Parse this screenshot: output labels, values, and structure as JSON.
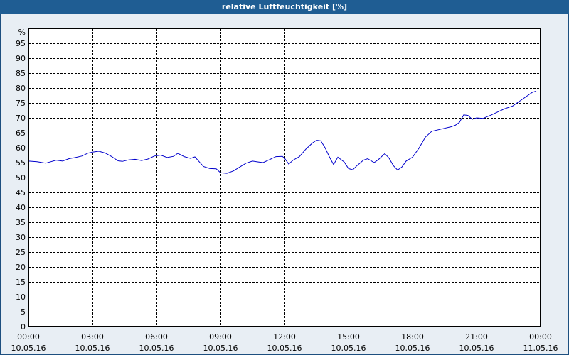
{
  "window": {
    "title": "relative Luftfeuchtigkeit [%]"
  },
  "colors": {
    "titlebar": "#1f5d93",
    "plot_bg": "#ffffff",
    "line": "#0000cc",
    "grid": "#000000",
    "page_bg": "#e8eef4"
  },
  "chart_data": {
    "type": "line",
    "title": "relative Luftfeuchtigkeit [%]",
    "ylabel": "%",
    "xlabel": "",
    "ylim": [
      0,
      100
    ],
    "yticks": [
      0,
      5,
      10,
      15,
      20,
      25,
      30,
      35,
      40,
      45,
      50,
      55,
      60,
      65,
      70,
      75,
      80,
      85,
      90,
      95
    ],
    "xlim": [
      0,
      24
    ],
    "xticks": [
      {
        "h": 0,
        "time": "00:00",
        "date": "10.05.16"
      },
      {
        "h": 3,
        "time": "03:00",
        "date": "10.05.16"
      },
      {
        "h": 6,
        "time": "06:00",
        "date": "10.05.16"
      },
      {
        "h": 9,
        "time": "09:00",
        "date": "10.05.16"
      },
      {
        "h": 12,
        "time": "12:00",
        "date": "10.05.16"
      },
      {
        "h": 15,
        "time": "15:00",
        "date": "10.05.16"
      },
      {
        "h": 18,
        "time": "18:00",
        "date": "10.05.16"
      },
      {
        "h": 21,
        "time": "21:00",
        "date": "10.05.16"
      },
      {
        "h": 24,
        "time": "00:00",
        "date": "11.05.16"
      }
    ],
    "grid": true,
    "series": [
      {
        "x": [
          0,
          0.4,
          0.8,
          1.0,
          1.3,
          1.6,
          1.9,
          2.2,
          2.5,
          2.8,
          3.0,
          3.3,
          3.6,
          3.9,
          4.2,
          4.4,
          4.7,
          5.0,
          5.3,
          5.6,
          5.9,
          6.2,
          6.5,
          6.8,
          7.0,
          7.3,
          7.6,
          7.8,
          8.0,
          8.2,
          8.5,
          8.8,
          9.0,
          9.3,
          9.6,
          9.9,
          10.2,
          10.5,
          10.8,
          11.0,
          11.3,
          11.6,
          11.9,
          12.0,
          12.2,
          12.4,
          12.7,
          13.0,
          13.3,
          13.5,
          13.7,
          13.9,
          14.1,
          14.3,
          14.5,
          14.8,
          15.0,
          15.2,
          15.4,
          15.7,
          15.9,
          16.2,
          16.4,
          16.7,
          16.9,
          17.1,
          17.3,
          17.5,
          17.7,
          18.0,
          18.3,
          18.6,
          18.9,
          19.2,
          19.5,
          19.8,
          20.0,
          20.2,
          20.4,
          20.6,
          20.8,
          21.0,
          21.3,
          21.7,
          22.0,
          22.3,
          22.7,
          23.0,
          23.3,
          23.6,
          23.8
        ],
        "y": [
          55.5,
          55.3,
          54.8,
          55.2,
          55.8,
          55.5,
          56.3,
          56.7,
          57.2,
          58.2,
          58.5,
          58.8,
          58.2,
          57.0,
          55.6,
          55.4,
          55.9,
          56.1,
          55.7,
          56.2,
          57.2,
          57.5,
          56.7,
          57.1,
          58.1,
          57.0,
          56.4,
          56.9,
          55.3,
          53.7,
          53.0,
          52.9,
          51.6,
          51.4,
          52.2,
          53.5,
          54.8,
          55.5,
          55.2,
          55.0,
          56.0,
          57.0,
          57.1,
          56.5,
          54.5,
          55.8,
          57.0,
          59.5,
          61.5,
          62.5,
          62.3,
          60.0,
          57.0,
          54.3,
          56.8,
          55.2,
          53.0,
          52.6,
          54.0,
          55.8,
          56.3,
          55.0,
          56.0,
          58.0,
          56.5,
          54.0,
          52.5,
          53.5,
          55.5,
          56.8,
          59.8,
          63.5,
          65.5,
          66.0,
          66.5,
          67.0,
          67.5,
          68.5,
          71.0,
          70.8,
          69.5,
          70.0,
          69.8,
          71.0,
          72.0,
          73.0,
          74.0,
          75.5,
          77.0,
          78.5,
          79.0
        ]
      }
    ]
  }
}
